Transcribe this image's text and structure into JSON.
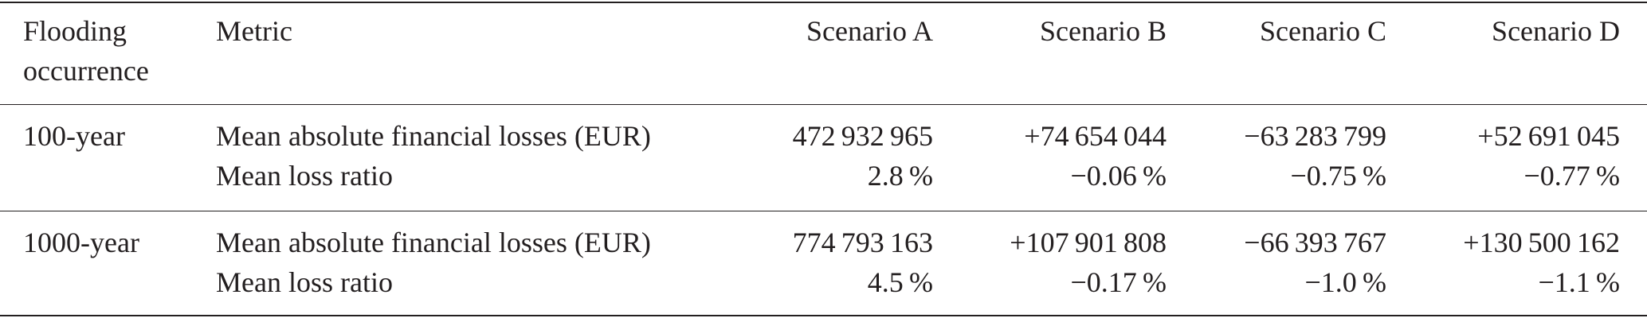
{
  "table": {
    "header": [
      "Flooding occurrence",
      "Metric",
      "Scenario A",
      "Scenario B",
      "Scenario C",
      "Scenario D"
    ],
    "groups": [
      {
        "label": "100-year",
        "rows": [
          {
            "metric": "Mean absolute financial losses (EUR)",
            "values": [
              "472 932 965",
              "+74 654 044",
              "−63 283 799",
              "+52 691 045"
            ]
          },
          {
            "metric": "Mean loss ratio",
            "values": [
              "2.8 %",
              "−0.06 %",
              "−0.75 %",
              "−0.77 %"
            ]
          }
        ]
      },
      {
        "label": "1000-year",
        "rows": [
          {
            "metric": "Mean absolute financial losses (EUR)",
            "values": [
              "774 793 163",
              "+107 901 808",
              "−66 393 767",
              "+130 500 162"
            ]
          },
          {
            "metric": "Mean loss ratio",
            "values": [
              "4.5 %",
              "−0.17 %",
              "−1.0 %",
              "−1.1 %"
            ]
          }
        ]
      }
    ]
  }
}
